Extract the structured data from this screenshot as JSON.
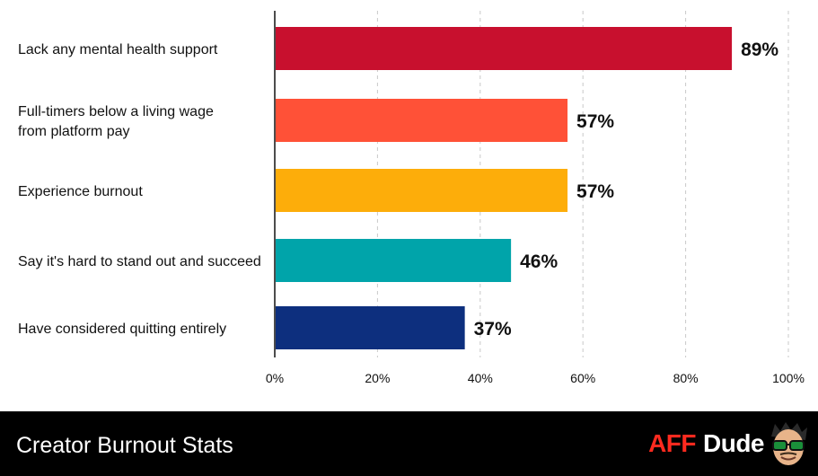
{
  "chart_data": {
    "type": "bar",
    "orientation": "horizontal",
    "categories": [
      "Lack any mental health support",
      "Full-timers below a living wage from platform pay",
      "Experience burnout",
      "Say it's hard to stand out and succeed",
      "Have considered quitting entirely"
    ],
    "category_lines": [
      [
        "Lack any mental health support"
      ],
      [
        "Full-timers below a living wage",
        "from platform pay"
      ],
      [
        "Experience burnout"
      ],
      [
        "Say it's hard to stand out and succeed"
      ],
      [
        "Have considered quitting entirely"
      ]
    ],
    "values": [
      89,
      57,
      57,
      46,
      37
    ],
    "value_labels": [
      "89%",
      "57%",
      "57%",
      "46%",
      "37%"
    ],
    "colors": [
      "#c8102e",
      "#ff5137",
      "#fdad0a",
      "#00a4aa",
      "#0d2f7e"
    ],
    "xlim": [
      0,
      100
    ],
    "xticks": [
      0,
      20,
      40,
      60,
      80,
      100
    ],
    "xtick_labels": [
      "0%",
      "20%",
      "40%",
      "60%",
      "80%",
      "100%"
    ],
    "grid": true,
    "title": "",
    "xlabel": "",
    "ylabel": ""
  },
  "footer": {
    "title": "Creator Burnout Stats",
    "brand_part1": "AFF",
    "brand_part2": "Dude",
    "mascot_icon": "cartoon-face-with-sunglasses-icon"
  }
}
